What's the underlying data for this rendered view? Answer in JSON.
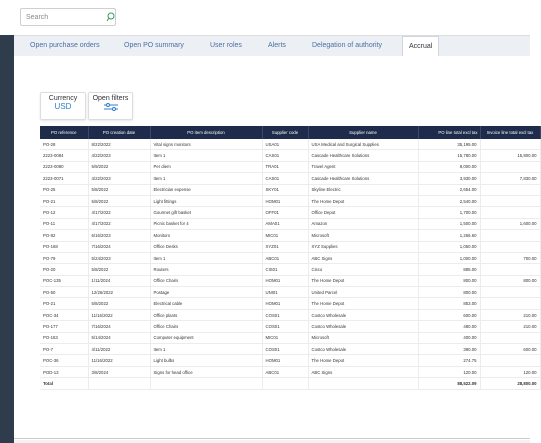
{
  "header": {
    "search_placeholder": "Search"
  },
  "tabs": {
    "items": [
      "Open purchase orders",
      "Open PO summary",
      "User roles",
      "Alerts",
      "Delegation of authority",
      "Accrual"
    ],
    "active": 5
  },
  "cards": {
    "currency_label": "Currency",
    "currency_value": "USD",
    "filters_label": "Open filters"
  },
  "table": {
    "columns": [
      "PO reference",
      "PO creation date",
      "PO item description",
      "Supplier code",
      "Supplier name",
      "PO line total excl tax",
      "Invoice line total excl tax"
    ],
    "rows": [
      [
        "PO-28",
        "8/22/2022",
        "Vital signs monitors",
        "USA01",
        "USA Medical and Surgical Supplies",
        "35,195.00",
        ""
      ],
      [
        "2223-0084",
        "4/22/2023",
        "Item 1",
        "CAS01",
        "Cascade Healthcare Solutions",
        "15,780.00",
        "15,800.00"
      ],
      [
        "2223-0080",
        "5/9/2022",
        "Per diem",
        "TRA01",
        "Travel Agent",
        "8,000.00",
        ""
      ],
      [
        "2223-0071",
        "4/22/2023",
        "Item 1",
        "CAS01",
        "Cascade Healthcare Solutions",
        "3,930.00",
        "7,830.00"
      ],
      [
        "PO-25",
        "5/8/2022",
        "Electrician expense",
        "SKY01",
        "Skyline Electric",
        "2,654.00",
        ""
      ],
      [
        "PO-21",
        "5/8/2022",
        "Light fittings",
        "HOM01",
        "The Home Depot",
        "2,540.00",
        ""
      ],
      [
        "PO-12",
        "4/17/2022",
        "Gourmet gift basket",
        "OFF01",
        "Office Depot",
        "1,700.00",
        ""
      ],
      [
        "PO-11",
        "4/17/2022",
        "Picnic basket for 4",
        "AMA01",
        "Amazon",
        "1,500.00",
        "1,600.00"
      ],
      [
        "PO-82",
        "6/16/2023",
        "Monitors",
        "MIC01",
        "Microsoft",
        "1,266.60",
        ""
      ],
      [
        "PO-168",
        "7/16/2024",
        "Office Desks",
        "XYZ01",
        "XYZ Supplies",
        "1,050.00",
        ""
      ],
      [
        "PO-79",
        "5/24/2023",
        "Item 1",
        "ABC01",
        "ABC Signs",
        "1,000.00",
        "700.00"
      ],
      [
        "PO-20",
        "5/8/2022",
        "Routers",
        "CIS01",
        "Cisco",
        "885.00",
        ""
      ],
      [
        "POC-135",
        "1/11/2024",
        "Office Chairs",
        "HOM01",
        "The Home Depot",
        "800.00",
        "800.00"
      ],
      [
        "PO-50",
        "12/26/2022",
        "Postage",
        "UNI01",
        "United Parcel",
        "800.00",
        ""
      ],
      [
        "PO-21",
        "5/8/2022",
        "Electrical cable",
        "HOM01",
        "The Home Depot",
        "853.00",
        ""
      ],
      [
        "POC-34",
        "11/16/2022",
        "Office plants",
        "COS01",
        "Costco Wholesale",
        "600.00",
        "210.00"
      ],
      [
        "PO-177",
        "7/16/2024",
        "Office Chairs",
        "COS01",
        "Costco Wholesale",
        "480.00",
        "210.00"
      ],
      [
        "PO-153",
        "5/14/2024",
        "Computer equipment",
        "MIC01",
        "Microsoft",
        "400.00",
        ""
      ],
      [
        "PO-7",
        "4/11/2022",
        "Item 1",
        "COS01",
        "Costco Wholesale",
        "390.00",
        "600.00"
      ],
      [
        "POC-36",
        "11/16/2022",
        "Light bulbs",
        "HOM01",
        "The Home Depot",
        "274.75",
        ""
      ],
      [
        "POD-13",
        "3/8/2024",
        "Signs for head office",
        "ABC01",
        "ABC Signs",
        "120.00",
        "120.00"
      ]
    ],
    "total_label": "Total",
    "totals": [
      "88,522.09",
      "28,800.00"
    ]
  }
}
